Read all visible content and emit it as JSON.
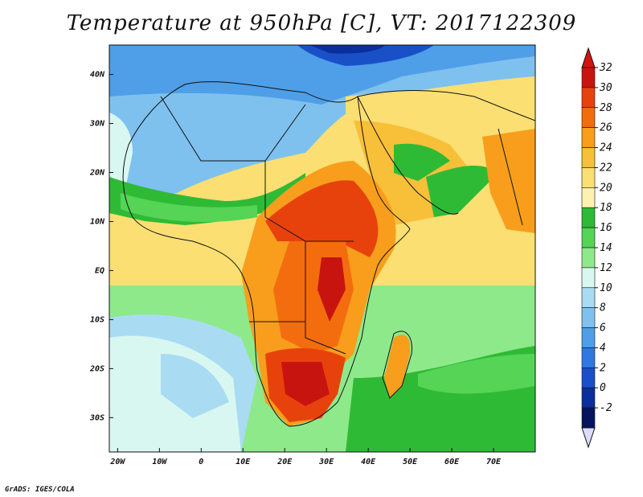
{
  "title": "Temperature at 950hPa [C], VT: 2017122309",
  "credit": "GrADS: IGES/COLA",
  "map": {
    "lon_range": [
      -22,
      80
    ],
    "lat_range": [
      -37,
      46
    ],
    "lat_labels": [
      "40N",
      "30N",
      "20N",
      "10N",
      "EQ",
      "10S",
      "20S",
      "30S"
    ],
    "lat_values": [
      40,
      30,
      20,
      10,
      0,
      -10,
      -20,
      -30
    ],
    "lon_labels": [
      "20W",
      "10W",
      "0",
      "10E",
      "20E",
      "30E",
      "40E",
      "50E",
      "60E",
      "70E"
    ],
    "lon_values": [
      -20,
      -10,
      0,
      10,
      20,
      30,
      40,
      50,
      60,
      70
    ]
  },
  "colorbar": {
    "labels": [
      "32",
      "30",
      "28",
      "26",
      "24",
      "22",
      "20",
      "18",
      "16",
      "14",
      "12",
      "10",
      "8",
      "6",
      "4",
      "2",
      "0",
      "-2"
    ],
    "colors": [
      "#c8140f",
      "#e8420c",
      "#f36d0e",
      "#f89e1c",
      "#f8bf38",
      "#fbdf73",
      "#fdf2ad",
      "#2fba36",
      "#55d456",
      "#8ee98a",
      "#d9f7f1",
      "#a9dcf2",
      "#7fc1ee",
      "#4f9ee8",
      "#2f78e0",
      "#1950c8",
      "#0a2e9b",
      "#06135e"
    ],
    "top_arrow_color": "#d4130f",
    "bottom_arrow_color": "#dcdcff"
  }
}
